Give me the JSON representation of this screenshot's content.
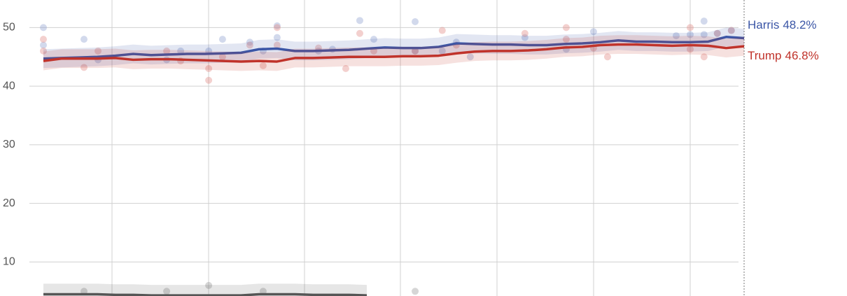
{
  "chart_data": {
    "type": "line",
    "x": [
      0,
      1,
      2,
      3,
      4,
      5,
      6,
      7,
      8,
      9,
      10,
      11,
      12,
      13,
      14,
      15,
      16,
      17,
      18,
      19,
      20,
      21,
      22,
      23,
      24,
      25,
      26,
      27,
      28,
      29,
      30,
      31,
      32,
      33,
      34,
      35,
      36,
      37,
      38,
      39
    ],
    "xlim": [
      0,
      39
    ],
    "ylim": [
      4.2,
      54.7
    ],
    "yticks": [
      10,
      20,
      30,
      40,
      50
    ],
    "grid": true,
    "series": [
      {
        "name": "Harris",
        "color": "#3b56a6",
        "uncertainty": 1.6,
        "values": [
          44.7,
          44.8,
          44.9,
          45.0,
          45.2,
          45.5,
          45.3,
          45.4,
          45.5,
          45.5,
          45.6,
          45.7,
          46.3,
          46.4,
          46.0,
          46.0,
          46.1,
          46.2,
          46.4,
          46.6,
          46.5,
          46.5,
          46.7,
          47.3,
          47.2,
          47.1,
          47.1,
          47.0,
          47.0,
          47.2,
          47.3,
          47.5,
          47.8,
          47.6,
          47.6,
          47.5,
          47.5,
          47.6,
          48.4,
          48.2
        ],
        "value_labels": [
          null,
          null,
          null,
          null,
          null,
          null,
          null,
          null,
          null,
          null,
          null,
          null,
          null,
          null,
          null,
          null,
          null,
          null,
          null,
          null,
          null,
          null,
          null,
          null,
          null,
          null,
          null,
          null,
          null,
          null,
          null,
          null,
          null,
          null,
          null,
          null,
          null,
          null,
          null,
          "48.2%"
        ]
      },
      {
        "name": "Trump",
        "color": "#c0332b",
        "uncertainty": 1.6,
        "values": [
          44.3,
          44.7,
          44.7,
          44.7,
          44.8,
          44.5,
          44.6,
          44.6,
          44.5,
          44.4,
          44.3,
          44.2,
          44.3,
          44.2,
          44.8,
          44.8,
          44.9,
          45.0,
          45.0,
          45.0,
          45.1,
          45.1,
          45.2,
          45.6,
          45.9,
          46.0,
          46.0,
          46.1,
          46.3,
          46.6,
          46.7,
          47.0,
          47.1,
          47.1,
          47.0,
          46.9,
          47.0,
          46.9,
          46.5,
          46.8
        ],
        "value_labels": [
          null,
          null,
          null,
          null,
          null,
          null,
          null,
          null,
          null,
          null,
          null,
          null,
          null,
          null,
          null,
          null,
          null,
          null,
          null,
          null,
          null,
          null,
          null,
          null,
          null,
          null,
          null,
          null,
          null,
          null,
          null,
          null,
          null,
          null,
          null,
          null,
          null,
          null,
          null,
          "46.8%"
        ]
      },
      {
        "color": "#555555",
        "uncertainty": 1.8,
        "values": [
          4.5,
          4.5,
          4.5,
          4.5,
          4.4,
          4.4,
          4.3,
          4.3,
          4.3,
          4.3,
          4.3,
          4.3,
          4.5,
          4.5,
          4.5,
          4.4,
          4.4,
          4.4,
          4.3,
          null,
          null,
          null,
          null,
          null,
          null,
          null,
          null,
          null,
          null,
          null,
          null,
          null,
          null,
          null,
          null,
          null,
          null,
          null,
          null,
          null
        ]
      }
    ],
    "polls": [
      {
        "color": "#8e9fd0",
        "x": [
          0,
          0,
          2.26,
          3.04,
          6.86,
          7.64,
          9.2,
          9.97,
          11.49,
          12.23,
          13.01,
          13.01,
          15.31,
          16.09,
          17.61,
          18.39,
          20.69,
          20.69,
          22.2,
          22.98,
          23.76,
          26.8,
          29.1,
          30.62,
          35.22,
          36,
          36.77,
          36.77,
          37.51,
          38.29
        ],
        "values": [
          50,
          47,
          48,
          44.5,
          44.5,
          46,
          46,
          48,
          47.5,
          46,
          50.3,
          48.3,
          46,
          46.3,
          51.2,
          48,
          51,
          46,
          46,
          47.5,
          45,
          48.3,
          46.3,
          49.3,
          48.6,
          48.8,
          51.1,
          48.8,
          49,
          49.5
        ]
      },
      {
        "color": "#e08a84",
        "x": [
          0,
          0,
          2.26,
          3.04,
          6.86,
          7.64,
          9.2,
          9.2,
          9.97,
          11.49,
          12.23,
          13.01,
          13.01,
          15.31,
          16.83,
          17.61,
          18.39,
          20.69,
          22.2,
          22.98,
          26.8,
          29.1,
          29.1,
          30.62,
          31.4,
          36,
          36,
          36.77,
          37.51,
          38.29
        ],
        "values": [
          48,
          46,
          43.2,
          46,
          46,
          44.3,
          43,
          41,
          45,
          47,
          43.5,
          50,
          47,
          46.5,
          43,
          49,
          46,
          46,
          49.5,
          47,
          49,
          50,
          48,
          46.5,
          45,
          50,
          46.3,
          45,
          49,
          49.5
        ]
      },
      {
        "color": "#999999",
        "x": [
          2.26,
          6.86,
          9.2,
          12.23,
          16.09,
          20.69
        ],
        "values": [
          5,
          5,
          6,
          5,
          4,
          5
        ]
      }
    ]
  }
}
